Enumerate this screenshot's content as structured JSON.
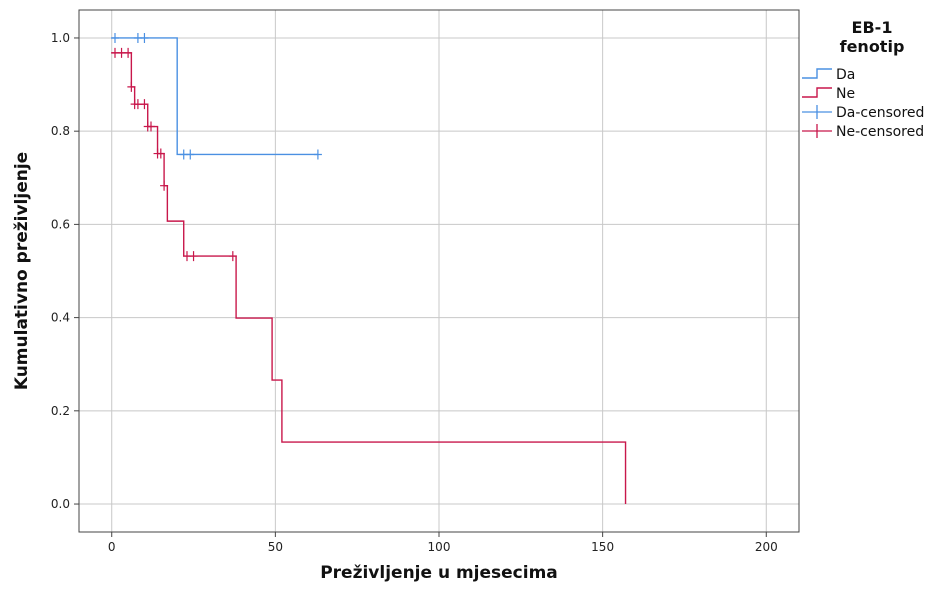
{
  "chart_data": {
    "type": "line",
    "subtype": "kaplan-meier step",
    "xlabel": "Preživljenje u mjesecima",
    "ylabel": "Kumulativno preživljenje",
    "xlim": [
      -10,
      210
    ],
    "ylim": [
      -0.06,
      1.06
    ],
    "xticks": [
      0,
      50,
      100,
      150,
      200
    ],
    "yticks": [
      0.0,
      0.2,
      0.4,
      0.6,
      0.8,
      1.0
    ],
    "xtick_labels": [
      "0",
      "50",
      "100",
      "150",
      "200"
    ],
    "ytick_labels": [
      "0.0",
      "0.2",
      "0.4",
      "0.6",
      "0.8",
      "1.0"
    ],
    "grid": true,
    "legend": {
      "title_lines": [
        "EB-1",
        "fenotip"
      ],
      "placement": "right",
      "entries": [
        {
          "label": "Da",
          "series": "Da",
          "kind": "line"
        },
        {
          "label": "Ne",
          "series": "Ne",
          "kind": "line"
        },
        {
          "label": "Da-censored",
          "series": "Da",
          "kind": "censored"
        },
        {
          "label": "Ne-censored",
          "series": "Ne",
          "kind": "censored"
        }
      ]
    },
    "series": [
      {
        "name": "Da",
        "color": "#4a90e2",
        "steps": [
          [
            0,
            1.0
          ],
          [
            20,
            0.75
          ],
          [
            63,
            0.75
          ]
        ],
        "censored": [
          [
            1,
            1.0
          ],
          [
            8,
            1.0
          ],
          [
            10,
            1.0
          ],
          [
            22,
            0.75
          ],
          [
            24,
            0.75
          ],
          [
            63,
            0.75
          ]
        ]
      },
      {
        "name": "Ne",
        "color": "#c8174b",
        "steps": [
          [
            0,
            0.968
          ],
          [
            6,
            0.895
          ],
          [
            7,
            0.858
          ],
          [
            11,
            0.81
          ],
          [
            14,
            0.752
          ],
          [
            16,
            0.683
          ],
          [
            17,
            0.607
          ],
          [
            22,
            0.532
          ],
          [
            38,
            0.399
          ],
          [
            49,
            0.266
          ],
          [
            52,
            0.133
          ],
          [
            157,
            0.0
          ]
        ],
        "censored": [
          [
            1,
            0.968
          ],
          [
            3,
            0.968
          ],
          [
            5,
            0.968
          ],
          [
            6,
            0.895
          ],
          [
            7,
            0.858
          ],
          [
            8,
            0.858
          ],
          [
            10,
            0.858
          ],
          [
            11,
            0.81
          ],
          [
            12,
            0.81
          ],
          [
            14,
            0.752
          ],
          [
            15,
            0.752
          ],
          [
            16,
            0.683
          ],
          [
            23,
            0.532
          ],
          [
            25,
            0.532
          ],
          [
            37,
            0.532
          ]
        ]
      }
    ]
  }
}
